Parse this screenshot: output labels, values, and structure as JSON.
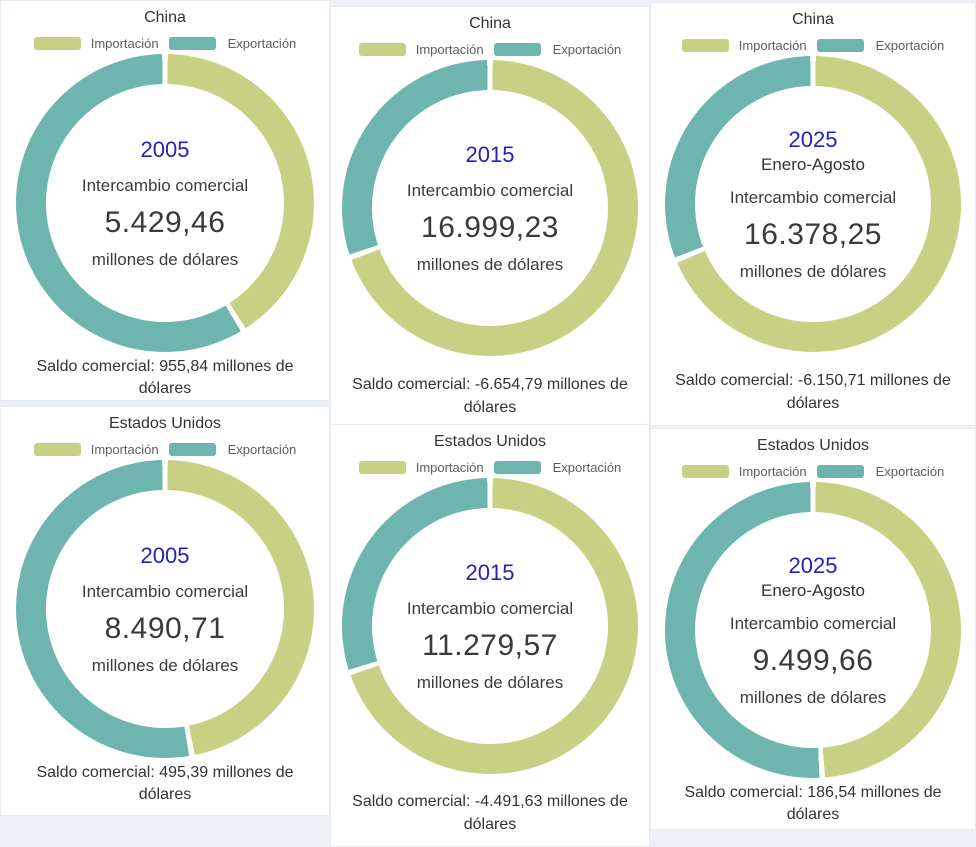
{
  "colors": {
    "import": "#c8d183",
    "export": "#6eb5af",
    "gap": "#ffffff",
    "year_text": "#2323b5",
    "card_bg": "#ffffff",
    "page_bg": "#edf1f6"
  },
  "legend": {
    "import_label": "Importación",
    "export_label": "Exportación"
  },
  "cards": [
    {
      "title": "China",
      "year": "2005",
      "period": "",
      "center_label": "Intercambio comercial",
      "value": "5.429,46",
      "unit": "millones de dólares",
      "saldo": "Saldo comercial: 955,84 millones de dólares",
      "import_pct": 41.2,
      "export_pct": 58.8
    },
    {
      "title": "China",
      "year": "2015",
      "period": "",
      "center_label": "Intercambio comercial",
      "value": "16.999,23",
      "unit": "millones de dólares",
      "saldo": "Saldo comercial: -6.654,79 millones de dólares",
      "import_pct": 69.6,
      "export_pct": 30.4
    },
    {
      "title": "China",
      "year": "2025",
      "period": "Enero-Agosto",
      "center_label": "Intercambio comercial",
      "value": "16.378,25",
      "unit": "millones de dólares",
      "saldo": "Saldo comercial: -6.150,71 millones de dólares",
      "import_pct": 68.8,
      "export_pct": 31.2
    },
    {
      "title": "Estados Unidos",
      "year": "2005",
      "period": "",
      "center_label": "Intercambio comercial",
      "value": "8.490,71",
      "unit": "millones de dólares",
      "saldo": "Saldo comercial: 495,39 millones de dólares",
      "import_pct": 47.1,
      "export_pct": 52.9
    },
    {
      "title": "Estados Unidos",
      "year": "2015",
      "period": "",
      "center_label": "Intercambio comercial",
      "value": "11.279,57",
      "unit": "millones de dólares",
      "saldo": "Saldo comercial: -4.491,63 millones de dólares",
      "import_pct": 69.9,
      "export_pct": 30.1
    },
    {
      "title": "Estados Unidos",
      "year": "2025",
      "period": "Enero-Agosto",
      "center_label": "Intercambio comercial",
      "value": "9.499,66",
      "unit": "millones de dólares",
      "saldo": "Saldo comercial: 186,54 millones de dólares",
      "import_pct": 49.0,
      "export_pct": 51.0
    }
  ],
  "chart_data": [
    {
      "type": "pie",
      "title": "China 2005",
      "labels": [
        "Importación",
        "Exportación"
      ],
      "values": [
        2236.81,
        3192.65
      ],
      "total": 5429.46,
      "balance": 955.84,
      "unit": "millones de dólares",
      "center_text": [
        "2005",
        "Intercambio comercial",
        "5.429,46",
        "millones de dólares"
      ],
      "legend_position": "top"
    },
    {
      "type": "pie",
      "title": "China 2015",
      "labels": [
        "Importación",
        "Exportación"
      ],
      "values": [
        11827.01,
        5172.22
      ],
      "total": 16999.23,
      "balance": -6654.79,
      "unit": "millones de dólares",
      "center_text": [
        "2015",
        "Intercambio comercial",
        "16.999,23",
        "millones de dólares"
      ],
      "legend_position": "top"
    },
    {
      "type": "pie",
      "title": "China 2025 Enero-Agosto",
      "labels": [
        "Importación",
        "Exportación"
      ],
      "values": [
        11264.48,
        5113.77
      ],
      "total": 16378.25,
      "balance": -6150.71,
      "unit": "millones de dólares",
      "center_text": [
        "2025",
        "Enero-Agosto",
        "Intercambio comercial",
        "16.378,25",
        "millones de dólares"
      ],
      "legend_position": "top"
    },
    {
      "type": "pie",
      "title": "Estados Unidos 2005",
      "labels": [
        "Importación",
        "Exportación"
      ],
      "values": [
        3997.66,
        4493.05
      ],
      "total": 8490.71,
      "balance": 495.39,
      "unit": "millones de dólares",
      "center_text": [
        "2005",
        "Intercambio comercial",
        "8.490,71",
        "millones de dólares"
      ],
      "legend_position": "top"
    },
    {
      "type": "pie",
      "title": "Estados Unidos 2015",
      "labels": [
        "Importación",
        "Exportación"
      ],
      "values": [
        7885.6,
        3393.97
      ],
      "total": 11279.57,
      "balance": -4491.63,
      "unit": "millones de dólares",
      "center_text": [
        "2015",
        "Intercambio comercial",
        "11.279,57",
        "millones de dólares"
      ],
      "legend_position": "top"
    },
    {
      "type": "pie",
      "title": "Estados Unidos 2025 Enero-Agosto",
      "labels": [
        "Importación",
        "Exportación"
      ],
      "values": [
        4656.56,
        4843.1
      ],
      "total": 9499.66,
      "balance": 186.54,
      "unit": "millones de dólares",
      "center_text": [
        "2025",
        "Enero-Agosto",
        "Intercambio comercial",
        "9.499,66",
        "millones de dólares"
      ],
      "legend_position": "top"
    }
  ]
}
